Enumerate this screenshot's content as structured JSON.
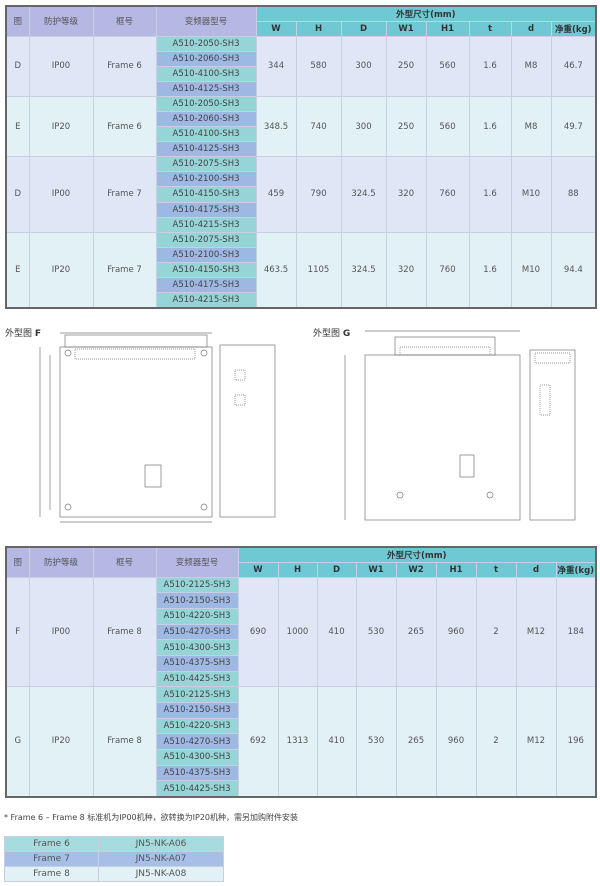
{
  "table1": {
    "headers": {
      "fig": "图",
      "protection": "防护等级",
      "frame": "框号",
      "model": "变频器型号",
      "dims": "外型尺寸(mm)",
      "cols": [
        "W",
        "H",
        "D",
        "W1",
        "H1",
        "t",
        "d",
        "净重(kg)"
      ]
    },
    "groups": [
      {
        "fig": "D",
        "protection": "IP00",
        "frame": "Frame 6",
        "models": [
          "A510-2050-SH3",
          "A510-2060-SH3",
          "A510-4100-SH3",
          "A510-4125-SH3"
        ],
        "values": [
          "344",
          "580",
          "300",
          "250",
          "560",
          "1.6",
          "M8",
          "46.7"
        ]
      },
      {
        "fig": "E",
        "protection": "IP20",
        "frame": "Frame 6",
        "models": [
          "A510-2050-SH3",
          "A510-2060-SH3",
          "A510-4100-SH3",
          "A510-4125-SH3"
        ],
        "values": [
          "348.5",
          "740",
          "300",
          "250",
          "560",
          "1.6",
          "M8",
          "49.7"
        ]
      },
      {
        "fig": "D",
        "protection": "IP00",
        "frame": "Frame 7",
        "models": [
          "A510-2075-SH3",
          "A510-2100-SH3",
          "A510-4150-SH3",
          "A510-4175-SH3",
          "A510-4215-SH3"
        ],
        "values": [
          "459",
          "790",
          "324.5",
          "320",
          "760",
          "1.6",
          "M10",
          "88"
        ]
      },
      {
        "fig": "E",
        "protection": "IP20",
        "frame": "Frame 7",
        "models": [
          "A510-2075-SH3",
          "A510-2100-SH3",
          "A510-4150-SH3",
          "A510-4175-SH3",
          "A510-4215-SH3"
        ],
        "values": [
          "463.5",
          "1105",
          "324.5",
          "320",
          "760",
          "1.6",
          "M10",
          "94.4"
        ]
      }
    ]
  },
  "drawings": {
    "f_label": "外型图",
    "f_letter": "F",
    "g_label": "外型图",
    "g_letter": "G"
  },
  "table2": {
    "headers": {
      "fig": "图",
      "protection": "防护等级",
      "frame": "框号",
      "model": "变频器型号",
      "dims": "外型尺寸(mm)",
      "cols": [
        "W",
        "H",
        "D",
        "W1",
        "W2",
        "H1",
        "t",
        "d",
        "净重(kg)"
      ]
    },
    "groups": [
      {
        "fig": "F",
        "protection": "IP00",
        "frame": "Frame 8",
        "models": [
          "A510-2125-SH3",
          "A510-2150-SH3",
          "A510-4220-SH3",
          "A510-4270-SH3",
          "A510-4300-SH3",
          "A510-4375-SH3",
          "A510-4425-SH3"
        ],
        "values": [
          "690",
          "1000",
          "410",
          "530",
          "265",
          "960",
          "2",
          "M12",
          "184"
        ]
      },
      {
        "fig": "G",
        "protection": "IP20",
        "frame": "Frame 8",
        "models": [
          "A510-2125-SH3",
          "A510-2150-SH3",
          "A510-4220-SH3",
          "A510-4270-SH3",
          "A510-4300-SH3",
          "A510-4375-SH3",
          "A510-4425-SH3"
        ],
        "values": [
          "692",
          "1313",
          "410",
          "530",
          "265",
          "960",
          "2",
          "M12",
          "196"
        ]
      }
    ]
  },
  "note": "* Frame 6 – Frame 8 标准机为IP00机种，欲转换为IP20机种，需另加购附件安装",
  "kits": [
    [
      "Frame 6",
      "JN5-NK-A06"
    ],
    [
      "Frame 7",
      "JN5-NK-A07"
    ],
    [
      "Frame 8",
      "JN5-NK-A08"
    ]
  ],
  "colors": {
    "header_purple": "#b4b8e2",
    "header_teal": "#6fc9d5",
    "model_teal": "#95d4d7",
    "model_blue": "#9eb8e4",
    "kit1": "#a6dcdd",
    "kit2": "#a7bfe6",
    "kit3": "#e2f1f6"
  }
}
